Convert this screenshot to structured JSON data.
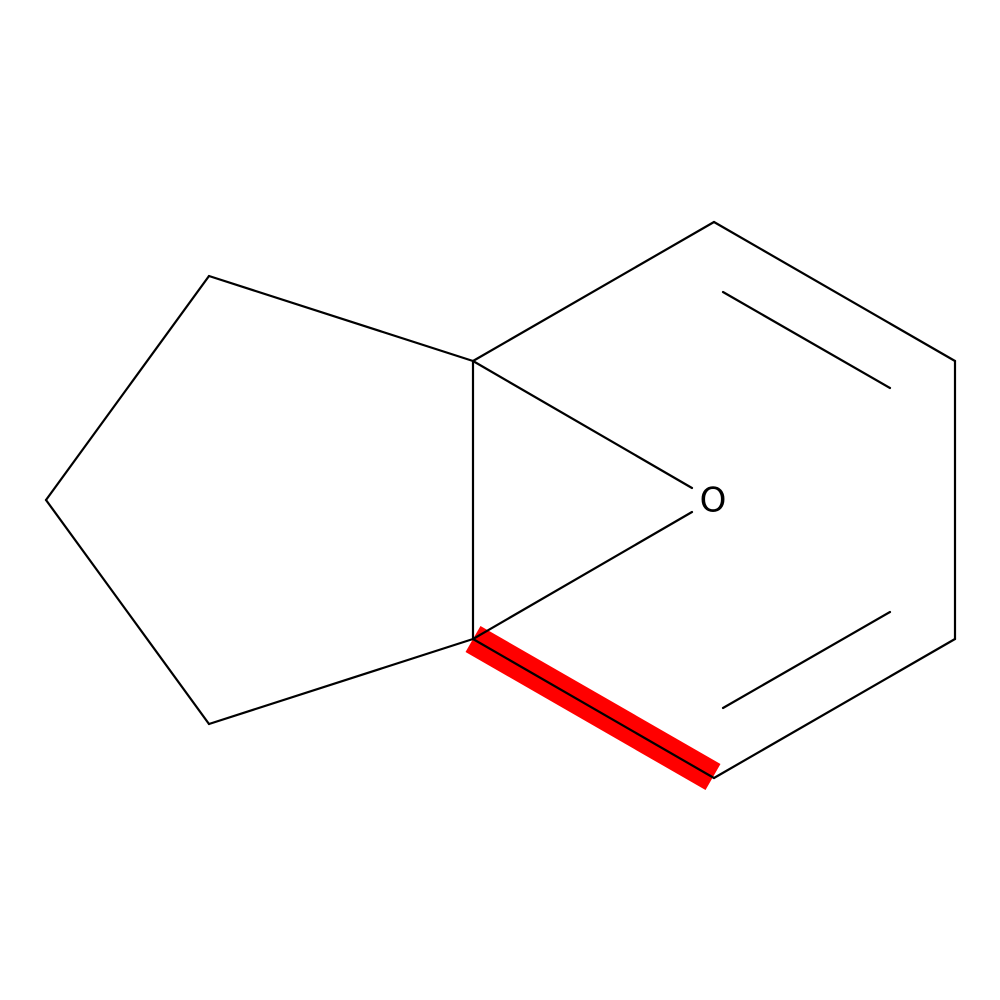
{
  "nodes": [
    {
      "label": "O"
    }
  ]
}
